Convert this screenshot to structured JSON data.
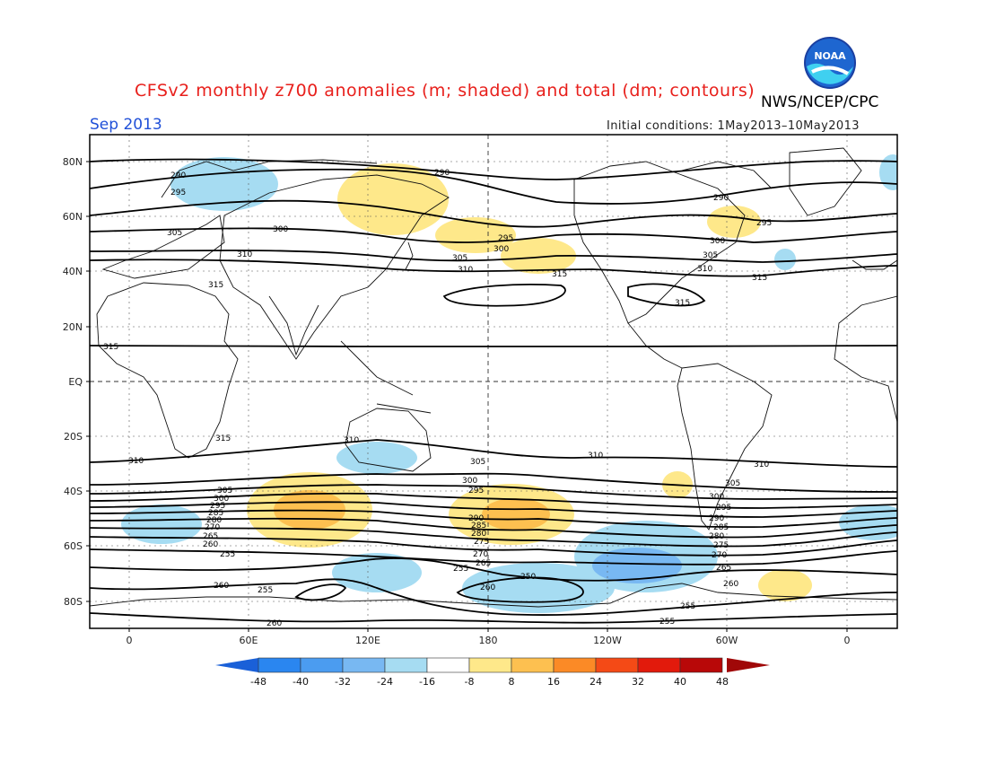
{
  "header": {
    "title": "CFSv2 monthly z700 anomalies (m; shaded) and total (dm; contours)",
    "organization": "NWS/NCEP/CPC",
    "month": "Sep 2013",
    "initial_conditions": "Initial conditions: 1May2013–10May2013",
    "logo_text": "NOAA"
  },
  "axes": {
    "lat_ticks": [
      "80N",
      "60N",
      "40N",
      "20N",
      "EQ",
      "20S",
      "40S",
      "60S",
      "80S"
    ],
    "lon_ticks": [
      "0",
      "60E",
      "120E",
      "180",
      "120W",
      "60W",
      "0"
    ]
  },
  "colorbar": {
    "labels": [
      "-48",
      "-40",
      "-32",
      "-24",
      "-16",
      "-8",
      "8",
      "16",
      "24",
      "32",
      "40",
      "48"
    ],
    "colors": [
      "#1f6fe0",
      "#2a86f0",
      "#4b9cf0",
      "#78b8f2",
      "#a6dcf2",
      "#ffffff",
      "#fee88a",
      "#fdc050",
      "#fb8a26",
      "#f44a16",
      "#e21a0c",
      "#b80808"
    ],
    "left_arrow_color": "#1a60d8",
    "right_arrow_color": "#a00808"
  },
  "contour_labels": [
    "290",
    "295",
    "300",
    "305",
    "310",
    "315",
    "255",
    "260",
    "265",
    "270",
    "275",
    "280",
    "285",
    "250"
  ],
  "colors": {
    "title": "#e8201c",
    "month": "#2050d8",
    "positive_anomaly": "#fee88a",
    "strong_positive": "#fdc050",
    "negative_anomaly": "#a6dcf2",
    "strong_negative": "#78b8f2"
  }
}
